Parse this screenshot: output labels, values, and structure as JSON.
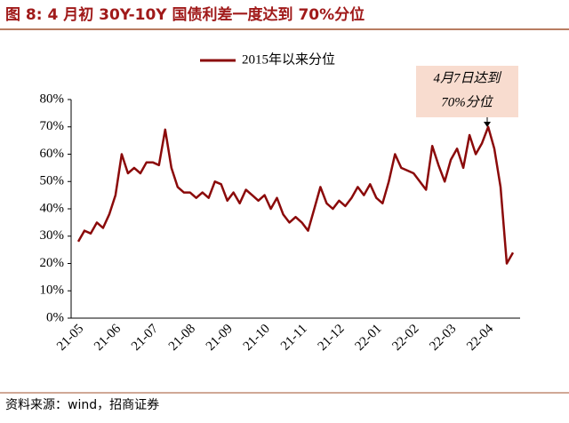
{
  "chart_data": {
    "type": "line",
    "title": "图 8:  4 月初 30Y-10Y 国债利差一度达到 70%分位",
    "source": "资料来源：wind，招商证券",
    "annotation": [
      "4月7日达到",
      "70%分位"
    ],
    "categories": [
      "21-05",
      null,
      null,
      null,
      null,
      null,
      "21-06",
      null,
      null,
      null,
      null,
      null,
      "21-07",
      null,
      null,
      null,
      null,
      null,
      "21-08",
      null,
      null,
      null,
      null,
      null,
      "21-09",
      null,
      null,
      null,
      null,
      null,
      "21-10",
      null,
      null,
      null,
      null,
      null,
      "21-11",
      null,
      null,
      null,
      null,
      null,
      "21-12",
      null,
      null,
      null,
      null,
      null,
      "22-01",
      null,
      null,
      null,
      null,
      null,
      "22-02",
      null,
      null,
      null,
      null,
      null,
      "22-03",
      null,
      null,
      null,
      null,
      null,
      "22-04",
      null,
      null,
      null,
      null
    ],
    "series": [
      {
        "name": "2015年以来分位",
        "color": "#8b0a0a",
        "values": [
          28,
          32,
          31,
          35,
          33,
          38,
          45,
          60,
          53,
          55,
          53,
          57,
          57,
          56,
          69,
          55,
          48,
          46,
          46,
          44,
          46,
          44,
          50,
          49,
          43,
          46,
          42,
          47,
          45,
          43,
          45,
          40,
          44,
          38,
          35,
          37,
          35,
          32,
          40,
          48,
          42,
          40,
          43,
          41,
          44,
          48,
          45,
          49,
          44,
          42,
          50,
          60,
          55,
          54,
          53,
          50,
          47,
          63,
          56,
          50,
          58,
          62,
          55,
          67,
          60,
          64,
          70,
          62,
          48,
          20,
          24
        ]
      }
    ],
    "ylim": [
      0,
      80
    ],
    "yticks": [
      {
        "value": 0,
        "label": "0%"
      },
      {
        "value": 10,
        "label": "10%"
      },
      {
        "value": 20,
        "label": "20%"
      },
      {
        "value": 30,
        "label": "30%"
      },
      {
        "value": 40,
        "label": "40%"
      },
      {
        "value": 50,
        "label": "50%"
      },
      {
        "value": 60,
        "label": "60%"
      },
      {
        "value": 70,
        "label": "70%"
      },
      {
        "value": 80,
        "label": "80%"
      }
    ],
    "grid": false
  }
}
